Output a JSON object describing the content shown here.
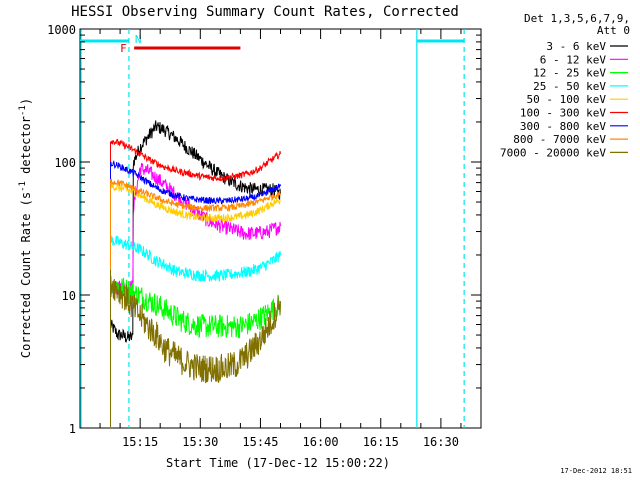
{
  "chart_data": {
    "type": "line",
    "title": "HESSI Observing Summary Count Rates, Corrected",
    "xlabel": "Start Time (17-Dec-12 15:00:22)",
    "ylabel_main": "Corrected Count Rate (s",
    "ylabel_sup1": "-1",
    "ylabel_mid": " detector",
    "ylabel_sup2": "-1",
    "ylabel_end": ")",
    "yscale": "log",
    "ylim": [
      1,
      1000
    ],
    "xlim_minutes": [
      0,
      100
    ],
    "x_ticks": [
      {
        "m": 15,
        "label": "15:15"
      },
      {
        "m": 30,
        "label": "15:30"
      },
      {
        "m": 45,
        "label": "15:45"
      },
      {
        "m": 60,
        "label": "16:00"
      },
      {
        "m": 75,
        "label": "16:15"
      },
      {
        "m": 90,
        "label": "16:30"
      }
    ],
    "y_ticks": [
      {
        "v": 1,
        "label": "1"
      },
      {
        "v": 10,
        "label": "10"
      },
      {
        "v": 100,
        "label": "100"
      },
      {
        "v": 1000,
        "label": "1000"
      }
    ],
    "legend_header": [
      "Det 1,3,5,6,7,9,",
      "Att 0"
    ],
    "timestamp": "17-Dec-2012 18:51",
    "flags": {
      "night_color": "#00e5ee",
      "night_spans": [
        [
          0,
          12.2
        ],
        [
          84,
          95.8
        ]
      ],
      "saa_label": "N",
      "flare_label": "F",
      "flare_color": "#e00000",
      "flare_span": [
        13.5,
        40
      ]
    },
    "series": [
      {
        "name": "3 - 6 keV",
        "color": "#000000",
        "points": [
          [
            7.6,
            6
          ],
          [
            8.5,
            5.5
          ],
          [
            9.5,
            5
          ],
          [
            10.5,
            5
          ],
          [
            11.5,
            4.8
          ],
          [
            12.3,
            4.8
          ],
          [
            13.3,
            100
          ],
          [
            14,
            110
          ],
          [
            15,
            130
          ],
          [
            17,
            155
          ],
          [
            19,
            185
          ],
          [
            21,
            175
          ],
          [
            24,
            150
          ],
          [
            27,
            125
          ],
          [
            30,
            105
          ],
          [
            33,
            88
          ],
          [
            36,
            76
          ],
          [
            39,
            68
          ],
          [
            42,
            63
          ],
          [
            45,
            62
          ],
          [
            48,
            62
          ],
          [
            50,
            58
          ]
        ]
      },
      {
        "name": "6 - 12 keV",
        "color": "#ff00ff",
        "points": [
          [
            7.6,
            11.5
          ],
          [
            9.5,
            11.5
          ],
          [
            11.5,
            11.5
          ],
          [
            12.3,
            11.5
          ],
          [
            13.3,
            44
          ],
          [
            14,
            60
          ],
          [
            15,
            90
          ],
          [
            17,
            85
          ],
          [
            20,
            72
          ],
          [
            23,
            60
          ],
          [
            26,
            50
          ],
          [
            29,
            42
          ],
          [
            32,
            36
          ],
          [
            35,
            33
          ],
          [
            38,
            31
          ],
          [
            41,
            29
          ],
          [
            44,
            29
          ],
          [
            47,
            30
          ],
          [
            50,
            33
          ]
        ]
      },
      {
        "name": "12 - 25 keV",
        "color": "#00ff00",
        "points": [
          [
            7.6,
            12
          ],
          [
            10,
            11.5
          ],
          [
            13,
            10.5
          ],
          [
            16,
            9.5
          ],
          [
            19,
            8.5
          ],
          [
            22,
            7.5
          ],
          [
            25,
            6.5
          ],
          [
            28,
            6
          ],
          [
            31,
            5.8
          ],
          [
            34,
            5.8
          ],
          [
            37,
            5.8
          ],
          [
            40,
            5.8
          ],
          [
            43,
            6.2
          ],
          [
            46,
            7
          ],
          [
            48,
            7.8
          ],
          [
            50,
            8.5
          ]
        ]
      },
      {
        "name": "25 - 50 keV",
        "color": "#00ffff",
        "points": [
          [
            7.6,
            26
          ],
          [
            9.5,
            25
          ],
          [
            11.5,
            24
          ],
          [
            13,
            23
          ],
          [
            15,
            22
          ],
          [
            17,
            20
          ],
          [
            19,
            18
          ],
          [
            21,
            17
          ],
          [
            24,
            15
          ],
          [
            27,
            14.5
          ],
          [
            30,
            14
          ],
          [
            33,
            14
          ],
          [
            36,
            14
          ],
          [
            39,
            14.5
          ],
          [
            42,
            15
          ],
          [
            45,
            16
          ],
          [
            48,
            18
          ],
          [
            50,
            20
          ]
        ]
      },
      {
        "name": "50 - 100 keV",
        "color": "#ffcc00",
        "points": [
          [
            7.6,
            66
          ],
          [
            9.5,
            64
          ],
          [
            11.5,
            62
          ],
          [
            13,
            60
          ],
          [
            15,
            56
          ],
          [
            17,
            52
          ],
          [
            19,
            48
          ],
          [
            22,
            44
          ],
          [
            25,
            41
          ],
          [
            28,
            39
          ],
          [
            31,
            38
          ],
          [
            34,
            38
          ],
          [
            37,
            38
          ],
          [
            40,
            39
          ],
          [
            43,
            41
          ],
          [
            46,
            45
          ],
          [
            48,
            49
          ],
          [
            50,
            52
          ]
        ]
      },
      {
        "name": "100 - 300 keV",
        "color": "#ff0000",
        "points": [
          [
            7.6,
            145
          ],
          [
            9.5,
            140
          ],
          [
            11.5,
            132
          ],
          [
            13,
            125
          ],
          [
            15,
            115
          ],
          [
            17,
            105
          ],
          [
            19,
            98
          ],
          [
            21,
            92
          ],
          [
            24,
            86
          ],
          [
            27,
            82
          ],
          [
            30,
            78
          ],
          [
            33,
            76
          ],
          [
            36,
            76
          ],
          [
            39,
            78
          ],
          [
            42,
            82
          ],
          [
            45,
            90
          ],
          [
            48,
            105
          ],
          [
            50,
            115
          ]
        ]
      },
      {
        "name": "300 - 800 keV",
        "color": "#0000ff",
        "points": [
          [
            7.6,
            98
          ],
          [
            9.5,
            94
          ],
          [
            11.5,
            88
          ],
          [
            13,
            84
          ],
          [
            15,
            77
          ],
          [
            17,
            70
          ],
          [
            19,
            64
          ],
          [
            21,
            60
          ],
          [
            24,
            56
          ],
          [
            27,
            53
          ],
          [
            30,
            52
          ],
          [
            33,
            51
          ],
          [
            36,
            51
          ],
          [
            39,
            52
          ],
          [
            42,
            53
          ],
          [
            45,
            56
          ],
          [
            48,
            62
          ],
          [
            50,
            66
          ]
        ]
      },
      {
        "name": "800 - 7000 keV",
        "color": "#ff8800",
        "points": [
          [
            7.6,
            72
          ],
          [
            9.5,
            70
          ],
          [
            11.5,
            67
          ],
          [
            13,
            64
          ],
          [
            15,
            60
          ],
          [
            17,
            57
          ],
          [
            19,
            54
          ],
          [
            21,
            51
          ],
          [
            24,
            48
          ],
          [
            27,
            46
          ],
          [
            30,
            45
          ],
          [
            33,
            45
          ],
          [
            36,
            45
          ],
          [
            39,
            46
          ],
          [
            42,
            48
          ],
          [
            45,
            51
          ],
          [
            48,
            55
          ],
          [
            50,
            58
          ]
        ]
      },
      {
        "name": "7000 - 20000 keV",
        "color": "#807000",
        "points": [
          [
            7.6,
            12.5
          ],
          [
            9.5,
            11
          ],
          [
            11.5,
            9.5
          ],
          [
            13,
            8.2
          ],
          [
            15,
            7
          ],
          [
            17,
            5.8
          ],
          [
            19,
            5
          ],
          [
            21,
            4
          ],
          [
            24,
            3.4
          ],
          [
            27,
            3
          ],
          [
            30,
            2.8
          ],
          [
            33,
            2.8
          ],
          [
            36,
            2.8
          ],
          [
            39,
            3
          ],
          [
            42,
            3.6
          ],
          [
            45,
            4.6
          ],
          [
            48,
            6.5
          ],
          [
            50,
            9
          ]
        ]
      }
    ]
  }
}
